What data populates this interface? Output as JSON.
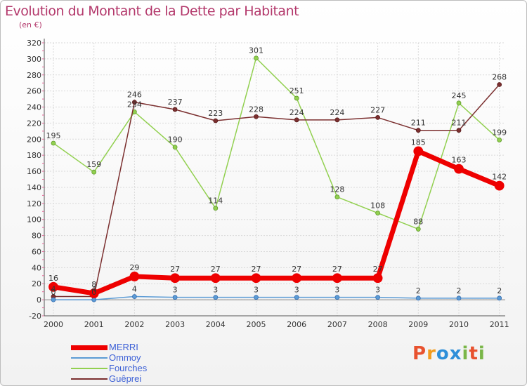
{
  "title": "Evolution du Montant de la Dette par Habitant",
  "unit": "(en €)",
  "logo": {
    "text": "Proxiti",
    "letters": [
      "P",
      "r",
      "o",
      "x",
      "i",
      "t",
      "i"
    ],
    "colors": [
      "#e8522f",
      "#f29b1d",
      "#2e8fd9",
      "#2e8fd9",
      "#7ab648",
      "#e8522f",
      "#7ab648"
    ]
  },
  "chart_data": {
    "type": "line",
    "x": [
      "2000",
      "2001",
      "2002",
      "2003",
      "2004",
      "2005",
      "2006",
      "2007",
      "2008",
      "2009",
      "2010",
      "2011"
    ],
    "ylim": [
      -20,
      320
    ],
    "yticks": [
      -20,
      0,
      20,
      40,
      60,
      80,
      100,
      120,
      140,
      160,
      180,
      200,
      220,
      240,
      260,
      280,
      300,
      320
    ],
    "grid": true,
    "legend": "bottom-left",
    "series": [
      {
        "name": "MERRI",
        "color": "#ee0000",
        "values": [
          16,
          8,
          29,
          27,
          27,
          27,
          27,
          27,
          27,
          185,
          163,
          142
        ]
      },
      {
        "name": "Ommoy",
        "color": "#5b9bd5",
        "values": [
          0,
          0,
          4,
          3,
          3,
          3,
          3,
          3,
          3,
          2,
          2,
          2
        ]
      },
      {
        "name": "Fourches",
        "color": "#92d050",
        "values": [
          195,
          159,
          234,
          190,
          114,
          301,
          251,
          128,
          108,
          88,
          245,
          199
        ]
      },
      {
        "name": "Guêprei",
        "color": "#7b2f2f",
        "values": [
          4,
          4,
          246,
          237,
          223,
          228,
          224,
          224,
          227,
          211,
          211,
          268
        ]
      }
    ],
    "data_labels": {
      "MERRI": [
        "16",
        "8",
        "29",
        "27",
        "27",
        "27",
        "27",
        "27",
        "27",
        "185",
        "163",
        "142"
      ],
      "Ommoy": [
        "0",
        "0",
        "4",
        "3",
        "3",
        "3",
        "3",
        "3",
        "3",
        "2",
        "2",
        "2"
      ],
      "Fourches": [
        "195",
        "159",
        "234",
        "190",
        "114",
        "301",
        "251",
        "128",
        "108",
        "88",
        "245",
        "199"
      ],
      "Guêprei": [
        "4",
        "4",
        "246",
        "237",
        "223",
        "228",
        "224",
        "224",
        "227",
        "211",
        "211",
        "268"
      ]
    }
  }
}
